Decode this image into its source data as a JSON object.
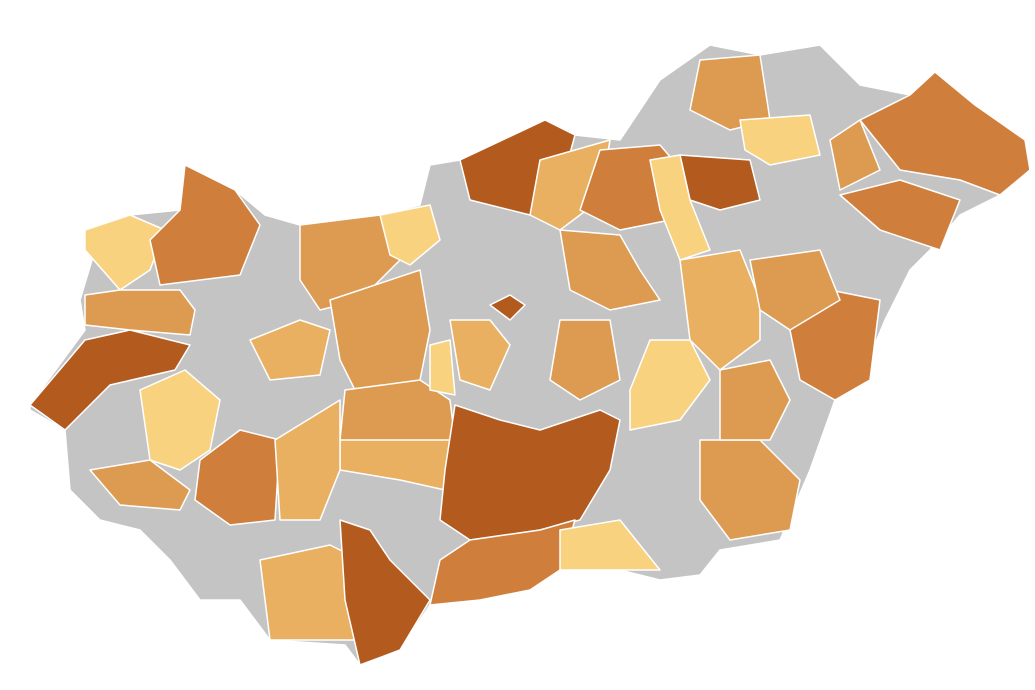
{
  "map": {
    "palette": [
      "#b35a1f",
      "#cf7f3b",
      "#dd9a51",
      "#eab061",
      "#f9d27f",
      "#c4c4c4"
    ]
  }
}
